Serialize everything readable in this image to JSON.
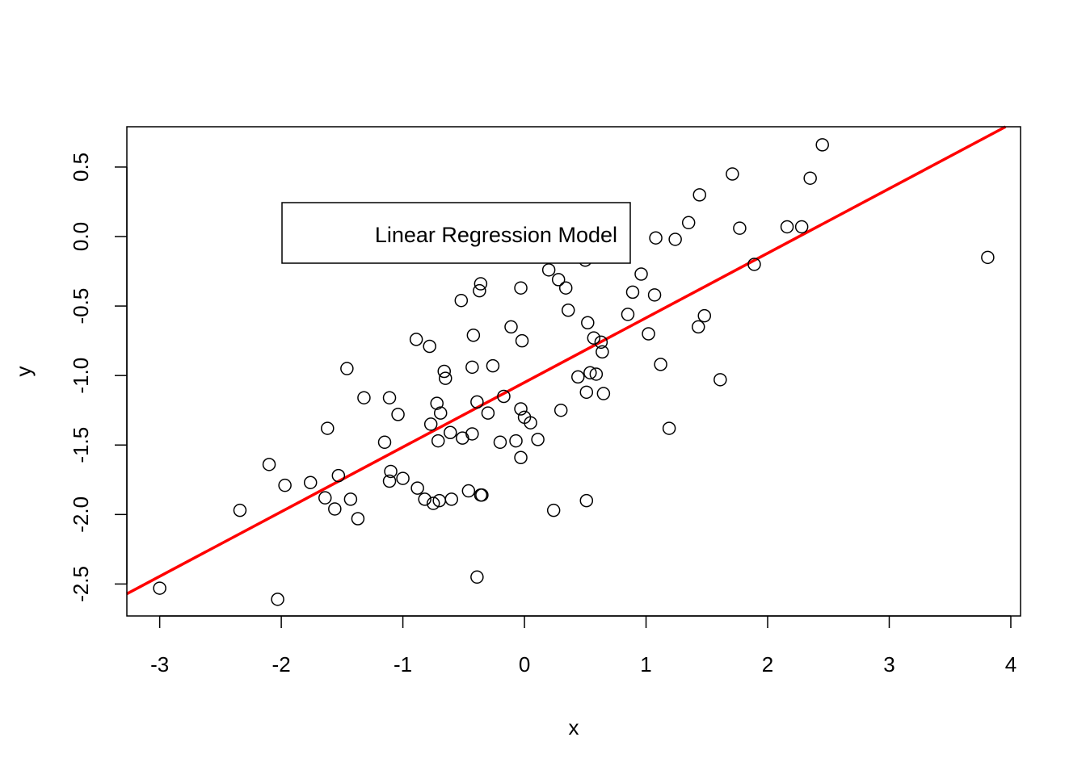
{
  "chart_data": {
    "type": "scatter",
    "title": "",
    "xlabel": "x",
    "ylabel": "y",
    "xlim": [
      -3.27,
      4.08
    ],
    "ylim": [
      -2.73,
      0.79
    ],
    "x_ticks": [
      -3,
      -2,
      -1,
      0,
      1,
      2,
      3,
      4
    ],
    "x_tick_labels": [
      "-3",
      "-2",
      "-1",
      "0",
      "1",
      "2",
      "3",
      "4"
    ],
    "y_ticks": [
      -2.5,
      -2.0,
      -1.5,
      -1.0,
      -0.5,
      0.0,
      0.5
    ],
    "y_tick_labels": [
      "-2.5",
      "-2.0",
      "-1.5",
      "-1.0",
      "-0.5",
      "0.0",
      "0.5"
    ],
    "grid": false,
    "legend": {
      "text": "Linear Regression Model",
      "placement": "top-left"
    },
    "colors": {
      "points": "#000000",
      "regression_line": "#ff0000"
    },
    "regression_line": {
      "intercept": -1.05,
      "slope": 0.465
    },
    "points": [
      [
        -3.0,
        -2.53
      ],
      [
        -2.34,
        -1.97
      ],
      [
        -2.1,
        -1.64
      ],
      [
        -2.03,
        -2.61
      ],
      [
        -1.97,
        -1.79
      ],
      [
        -1.76,
        -1.77
      ],
      [
        -1.64,
        -1.88
      ],
      [
        -1.62,
        -1.38
      ],
      [
        -1.56,
        -1.96
      ],
      [
        -1.53,
        -1.72
      ],
      [
        -1.46,
        -0.95
      ],
      [
        -1.43,
        -1.89
      ],
      [
        -1.37,
        -2.03
      ],
      [
        -1.32,
        -1.16
      ],
      [
        -1.15,
        -1.48
      ],
      [
        -1.11,
        -1.76
      ],
      [
        -1.1,
        -1.69
      ],
      [
        -1.11,
        -1.16
      ],
      [
        -1.04,
        -1.28
      ],
      [
        -1.0,
        -1.74
      ],
      [
        -0.89,
        -0.74
      ],
      [
        -0.88,
        -1.81
      ],
      [
        -0.82,
        -1.89
      ],
      [
        -0.78,
        -0.79
      ],
      [
        -0.77,
        -1.35
      ],
      [
        -0.75,
        -1.92
      ],
      [
        -0.72,
        -1.2
      ],
      [
        -0.71,
        -1.47
      ],
      [
        -0.7,
        -1.9
      ],
      [
        -0.69,
        -1.27
      ],
      [
        -0.66,
        -0.97
      ],
      [
        -0.65,
        -1.02
      ],
      [
        -0.61,
        -1.41
      ],
      [
        -0.6,
        -1.89
      ],
      [
        -0.52,
        -0.46
      ],
      [
        -0.51,
        -1.45
      ],
      [
        -0.46,
        -1.83
      ],
      [
        -0.43,
        -1.42
      ],
      [
        -0.43,
        -0.94
      ],
      [
        -0.42,
        -0.71
      ],
      [
        -0.39,
        -1.19
      ],
      [
        -0.39,
        -2.45
      ],
      [
        -0.37,
        -0.39
      ],
      [
        -0.36,
        -0.34
      ],
      [
        -0.36,
        -1.86
      ],
      [
        -0.35,
        -1.86
      ],
      [
        -0.3,
        -1.27
      ],
      [
        -0.26,
        -0.93
      ],
      [
        -0.2,
        -1.48
      ],
      [
        -0.17,
        -1.15
      ],
      [
        -0.11,
        -0.65
      ],
      [
        -0.07,
        -1.47
      ],
      [
        -0.03,
        -1.24
      ],
      [
        -0.03,
        -1.59
      ],
      [
        -0.03,
        -0.37
      ],
      [
        -0.02,
        -0.75
      ],
      [
        0.0,
        -1.3
      ],
      [
        0.05,
        -1.34
      ],
      [
        0.11,
        -1.46
      ],
      [
        0.2,
        -0.24
      ],
      [
        0.24,
        -1.97
      ],
      [
        0.28,
        -0.31
      ],
      [
        0.3,
        -1.25
      ],
      [
        0.34,
        -0.37
      ],
      [
        0.36,
        -0.53
      ],
      [
        0.44,
        -1.01
      ],
      [
        0.5,
        -0.17
      ],
      [
        0.51,
        -1.9
      ],
      [
        0.51,
        -1.12
      ],
      [
        0.52,
        -0.62
      ],
      [
        0.54,
        -0.98
      ],
      [
        0.57,
        -0.73
      ],
      [
        0.59,
        -0.99
      ],
      [
        0.63,
        -0.76
      ],
      [
        0.64,
        -0.83
      ],
      [
        0.65,
        -1.13
      ],
      [
        0.85,
        -0.56
      ],
      [
        0.89,
        -0.4
      ],
      [
        0.96,
        -0.27
      ],
      [
        1.02,
        -0.7
      ],
      [
        1.07,
        -0.42
      ],
      [
        1.08,
        -0.01
      ],
      [
        1.12,
        -0.92
      ],
      [
        1.19,
        -1.38
      ],
      [
        1.24,
        -0.02
      ],
      [
        1.35,
        0.1
      ],
      [
        1.43,
        -0.65
      ],
      [
        1.44,
        0.3
      ],
      [
        1.48,
        -0.57
      ],
      [
        1.61,
        -1.03
      ],
      [
        1.71,
        0.45
      ],
      [
        1.77,
        0.06
      ],
      [
        1.89,
        -0.2
      ],
      [
        2.16,
        0.07
      ],
      [
        2.28,
        0.07
      ],
      [
        2.35,
        0.42
      ],
      [
        2.45,
        0.66
      ],
      [
        3.81,
        -0.15
      ]
    ]
  }
}
